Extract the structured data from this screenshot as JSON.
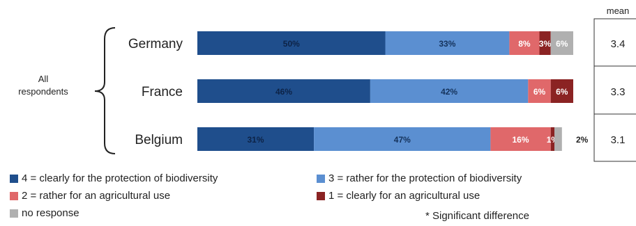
{
  "chart_data": {
    "type": "bar",
    "orientation": "horizontal",
    "stacked": true,
    "group_label": "All respondents",
    "categories": [
      "Germany",
      "France",
      "Belgium"
    ],
    "series": [
      {
        "name": "4 = clearly for the protection of biodiversity",
        "color": "#1f4e8c",
        "values": [
          50,
          46,
          31
        ],
        "labels": [
          "50%",
          "46%",
          "31%"
        ]
      },
      {
        "name": "3 = rather for the protection of biodiversity",
        "color": "#5b8fd1",
        "values": [
          33,
          42,
          47
        ],
        "labels": [
          "33%",
          "42%",
          "47%"
        ]
      },
      {
        "name": "2 = rather for an agricultural use",
        "color": "#e0686a",
        "values": [
          8,
          6,
          16
        ],
        "labels": [
          "8%",
          "6%",
          "16%"
        ]
      },
      {
        "name": "1 = clearly for an agricultural use",
        "color": "#8b2323",
        "values": [
          3,
          6,
          1
        ],
        "labels": [
          "3%",
          "6%",
          "1%"
        ]
      },
      {
        "name": "no response",
        "color": "#b0b0b0",
        "values": [
          6,
          0,
          2
        ],
        "labels": [
          "6%",
          "",
          "2%"
        ]
      }
    ],
    "xlim": [
      0,
      100
    ],
    "mean_header": "mean",
    "means": [
      "3.4",
      "3.3",
      "3.1"
    ],
    "footnote": "* Significant difference",
    "legend_position": "bottom"
  }
}
